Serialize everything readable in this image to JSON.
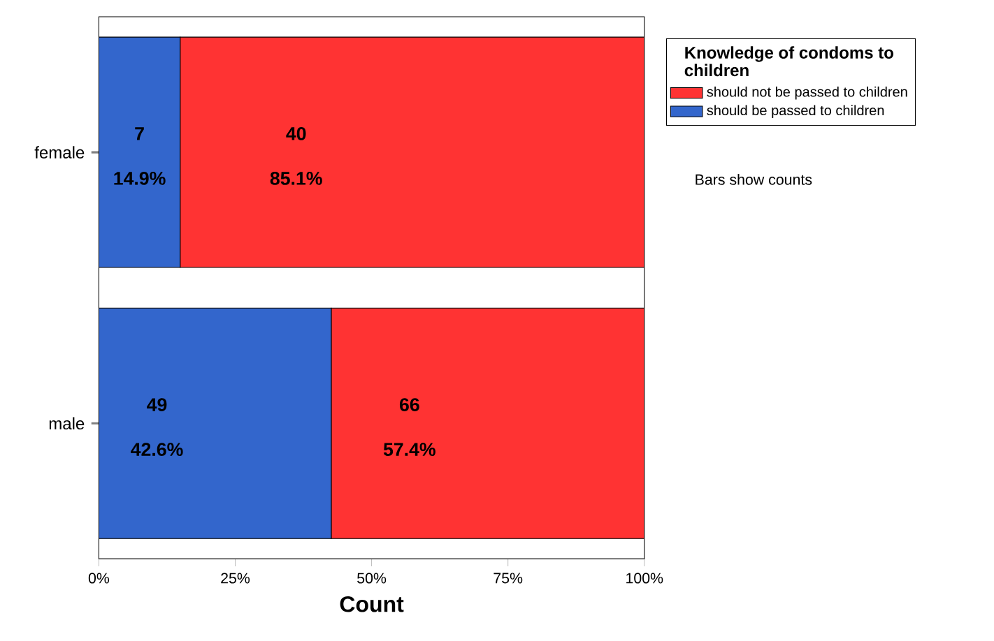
{
  "chart_data": {
    "type": "bar",
    "orientation": "horizontal",
    "stacked": true,
    "categories": [
      "female",
      "male"
    ],
    "series": [
      {
        "name": "should be passed to children",
        "color": "#3366cc",
        "values": [
          14.9,
          42.6
        ],
        "value_labels": [
          "14.9%",
          "42.6%"
        ]
      },
      {
        "name": "should not be passed to children",
        "color": "#ff3333",
        "values": [
          85.1,
          57.4
        ],
        "value_labels": [
          "85.1%",
          "57.4%"
        ]
      }
    ],
    "xlim": [
      0,
      100
    ],
    "xticks": [
      {
        "value": 0,
        "label": "0%"
      },
      {
        "value": 25,
        "label": "25%"
      },
      {
        "value": 50,
        "label": "50%"
      },
      {
        "value": 75,
        "label": "75%"
      },
      {
        "value": 100,
        "label": "100%"
      }
    ],
    "xlabel": "Count",
    "legend_title": "Knowledge of condoms to children",
    "legend": "right",
    "annotations": [
      "7",
      "40",
      "49",
      "66",
      "Bars show counts"
    ]
  }
}
